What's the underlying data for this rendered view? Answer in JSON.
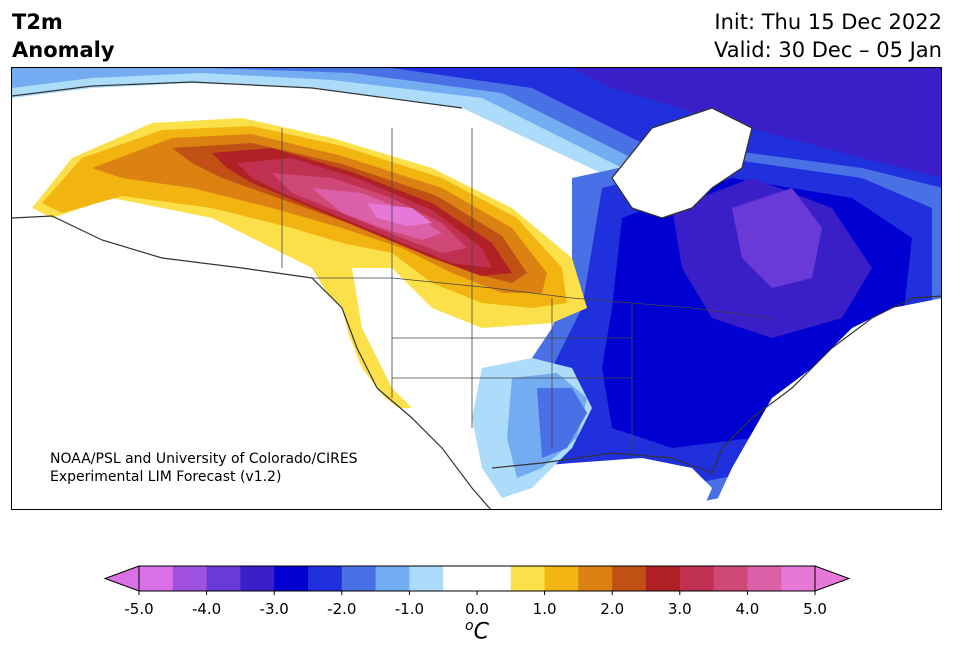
{
  "header": {
    "title_line1": "T2m",
    "title_line2": "Anomaly",
    "init_text": "Init: Thu 15 Dec 2022",
    "valid_text": "Valid: 30 Dec – 05 Jan"
  },
  "map": {
    "credit_line1": "NOAA/PSL and University of Colorado/CIRES",
    "credit_line2": "Experimental LIM Forecast (v1.2)",
    "region": "North America",
    "variable": "2-meter temperature anomaly"
  },
  "colorbar": {
    "unit": "C",
    "unit_superscript": "o",
    "ticks": [
      "-5.0",
      "-4.0",
      "-3.0",
      "-2.0",
      "-1.0",
      "0.0",
      "1.0",
      "2.0",
      "3.0",
      "4.0",
      "5.0"
    ],
    "colors": [
      "#d970e6",
      "#a050e0",
      "#6a3ad8",
      "#3a1ec8",
      "#0000d2",
      "#2030dc",
      "#4a70e6",
      "#74acf2",
      "#acdcfa",
      "#ffffff",
      "#ffffff",
      "#fce04a",
      "#f2b410",
      "#dc8212",
      "#c05014",
      "#b02024",
      "#c03050",
      "#d04878",
      "#dc60a8",
      "#e678d8"
    ],
    "extend_low_color": "#d970e6",
    "extend_high_color": "#e678d8"
  }
}
